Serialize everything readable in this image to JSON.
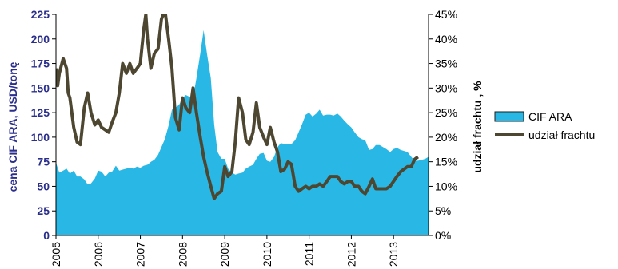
{
  "chart_data": {
    "type": "area",
    "ylabel_left": "cena CIF ARA, USD/tonę",
    "ylabel_right": "udział frachtu , %",
    "y_left_lim": [
      0,
      225
    ],
    "y_left_ticks": [
      0,
      25,
      50,
      75,
      100,
      125,
      150,
      175,
      200,
      225
    ],
    "y_right_lim": [
      0,
      45
    ],
    "y_right_ticks": [
      0,
      5,
      10,
      15,
      20,
      25,
      30,
      35,
      40,
      45
    ],
    "y_right_tick_labels": [
      "0%",
      "5%",
      "10%",
      "15%",
      "20%",
      "25%",
      "30%",
      "35%",
      "40%",
      "45%"
    ],
    "x_ticks": [
      "2005",
      "2006",
      "2007",
      "2008",
      "2009",
      "2010",
      "2011",
      "2012",
      "2013"
    ],
    "x_range": [
      2005.0,
      2013.83
    ],
    "grid": false,
    "legend_position": "right",
    "series": [
      {
        "name": "CIF ARA",
        "type": "area",
        "axis": "left",
        "color": "#29b8e5",
        "points": [
          [
            2005.0,
            74
          ],
          [
            2005.08,
            64
          ],
          [
            2005.17,
            66
          ],
          [
            2005.25,
            68
          ],
          [
            2005.33,
            63
          ],
          [
            2005.42,
            66
          ],
          [
            2005.5,
            60
          ],
          [
            2005.58,
            60
          ],
          [
            2005.67,
            57
          ],
          [
            2005.75,
            52
          ],
          [
            2005.83,
            53
          ],
          [
            2005.92,
            58
          ],
          [
            2006.0,
            66
          ],
          [
            2006.08,
            65
          ],
          [
            2006.17,
            60
          ],
          [
            2006.25,
            64
          ],
          [
            2006.33,
            65
          ],
          [
            2006.42,
            71
          ],
          [
            2006.5,
            66
          ],
          [
            2006.58,
            67
          ],
          [
            2006.67,
            68
          ],
          [
            2006.75,
            69
          ],
          [
            2006.83,
            68
          ],
          [
            2006.92,
            70
          ],
          [
            2007.0,
            69
          ],
          [
            2007.08,
            71
          ],
          [
            2007.17,
            72
          ],
          [
            2007.25,
            75
          ],
          [
            2007.33,
            77
          ],
          [
            2007.42,
            82
          ],
          [
            2007.5,
            90
          ],
          [
            2007.58,
            98
          ],
          [
            2007.67,
            112
          ],
          [
            2007.75,
            128
          ],
          [
            2007.83,
            130
          ],
          [
            2007.92,
            133
          ],
          [
            2008.0,
            140
          ],
          [
            2008.08,
            143
          ],
          [
            2008.17,
            141
          ],
          [
            2008.25,
            140
          ],
          [
            2008.33,
            160
          ],
          [
            2008.42,
            185
          ],
          [
            2008.5,
            209
          ],
          [
            2008.58,
            185
          ],
          [
            2008.67,
            160
          ],
          [
            2008.75,
            113
          ],
          [
            2008.83,
            85
          ],
          [
            2008.92,
            78
          ],
          [
            2009.0,
            78
          ],
          [
            2009.08,
            68
          ],
          [
            2009.17,
            64
          ],
          [
            2009.25,
            62
          ],
          [
            2009.33,
            63
          ],
          [
            2009.42,
            64
          ],
          [
            2009.5,
            68
          ],
          [
            2009.58,
            70
          ],
          [
            2009.67,
            72
          ],
          [
            2009.75,
            78
          ],
          [
            2009.83,
            83
          ],
          [
            2009.92,
            84
          ],
          [
            2010.0,
            76
          ],
          [
            2010.08,
            75
          ],
          [
            2010.17,
            80
          ],
          [
            2010.25,
            90
          ],
          [
            2010.33,
            94
          ],
          [
            2010.42,
            93
          ],
          [
            2010.5,
            93
          ],
          [
            2010.58,
            93
          ],
          [
            2010.67,
            97
          ],
          [
            2010.75,
            105
          ],
          [
            2010.83,
            113
          ],
          [
            2010.92,
            123
          ],
          [
            2011.0,
            125
          ],
          [
            2011.08,
            121
          ],
          [
            2011.17,
            124
          ],
          [
            2011.25,
            128
          ],
          [
            2011.33,
            122
          ],
          [
            2011.42,
            123
          ],
          [
            2011.5,
            123
          ],
          [
            2011.58,
            122
          ],
          [
            2011.67,
            124
          ],
          [
            2011.75,
            121
          ],
          [
            2011.83,
            117
          ],
          [
            2011.92,
            113
          ],
          [
            2012.0,
            110
          ],
          [
            2012.08,
            105
          ],
          [
            2012.17,
            100
          ],
          [
            2012.25,
            98
          ],
          [
            2012.33,
            97
          ],
          [
            2012.42,
            87
          ],
          [
            2012.5,
            88
          ],
          [
            2012.58,
            92
          ],
          [
            2012.67,
            92
          ],
          [
            2012.75,
            90
          ],
          [
            2012.83,
            88
          ],
          [
            2012.92,
            85
          ],
          [
            2013.0,
            88
          ],
          [
            2013.08,
            89
          ],
          [
            2013.17,
            87
          ],
          [
            2013.25,
            86
          ],
          [
            2013.33,
            85
          ],
          [
            2013.42,
            80
          ],
          [
            2013.5,
            76
          ],
          [
            2013.58,
            76
          ],
          [
            2013.67,
            77
          ],
          [
            2013.75,
            78
          ],
          [
            2013.83,
            80
          ]
        ]
      },
      {
        "name": "udział frachtu",
        "type": "line",
        "axis": "right",
        "color": "#4d4732",
        "points": [
          [
            2005.0,
            34
          ],
          [
            2005.04,
            30.5
          ],
          [
            2005.08,
            33
          ],
          [
            2005.17,
            36
          ],
          [
            2005.25,
            34
          ],
          [
            2005.29,
            29
          ],
          [
            2005.33,
            28
          ],
          [
            2005.42,
            22
          ],
          [
            2005.5,
            19
          ],
          [
            2005.58,
            18.5
          ],
          [
            2005.67,
            26
          ],
          [
            2005.75,
            29
          ],
          [
            2005.83,
            25
          ],
          [
            2005.92,
            22.5
          ],
          [
            2006.0,
            23.5
          ],
          [
            2006.08,
            22
          ],
          [
            2006.17,
            21.5
          ],
          [
            2006.25,
            21
          ],
          [
            2006.33,
            23
          ],
          [
            2006.42,
            25
          ],
          [
            2006.5,
            29
          ],
          [
            2006.58,
            35
          ],
          [
            2006.67,
            33
          ],
          [
            2006.75,
            35
          ],
          [
            2006.83,
            33
          ],
          [
            2006.92,
            34
          ],
          [
            2007.0,
            35
          ],
          [
            2007.08,
            42
          ],
          [
            2007.13,
            45
          ],
          [
            2007.17,
            40
          ],
          [
            2007.25,
            34
          ],
          [
            2007.33,
            37
          ],
          [
            2007.42,
            38
          ],
          [
            2007.5,
            44
          ],
          [
            2007.58,
            46
          ],
          [
            2007.67,
            40
          ],
          [
            2007.75,
            34
          ],
          [
            2007.83,
            24
          ],
          [
            2007.92,
            21.5
          ],
          [
            2008.0,
            28
          ],
          [
            2008.08,
            26
          ],
          [
            2008.17,
            25
          ],
          [
            2008.25,
            30
          ],
          [
            2008.33,
            25
          ],
          [
            2008.42,
            20
          ],
          [
            2008.5,
            16
          ],
          [
            2008.58,
            13
          ],
          [
            2008.67,
            10
          ],
          [
            2008.75,
            7.5
          ],
          [
            2008.83,
            8.5
          ],
          [
            2008.92,
            9
          ],
          [
            2009.0,
            14
          ],
          [
            2009.08,
            12
          ],
          [
            2009.17,
            13
          ],
          [
            2009.25,
            19
          ],
          [
            2009.33,
            28
          ],
          [
            2009.42,
            25
          ],
          [
            2009.5,
            19.5
          ],
          [
            2009.58,
            18.5
          ],
          [
            2009.67,
            21
          ],
          [
            2009.75,
            27
          ],
          [
            2009.83,
            22
          ],
          [
            2009.92,
            20
          ],
          [
            2010.0,
            18.5
          ],
          [
            2010.08,
            22
          ],
          [
            2010.17,
            19
          ],
          [
            2010.25,
            17
          ],
          [
            2010.33,
            13
          ],
          [
            2010.42,
            13.5
          ],
          [
            2010.5,
            15
          ],
          [
            2010.58,
            14.5
          ],
          [
            2010.67,
            10
          ],
          [
            2010.75,
            9
          ],
          [
            2010.83,
            9.5
          ],
          [
            2010.92,
            10
          ],
          [
            2011.0,
            9.5
          ],
          [
            2011.08,
            10
          ],
          [
            2011.17,
            10
          ],
          [
            2011.25,
            10.5
          ],
          [
            2011.33,
            10
          ],
          [
            2011.42,
            11
          ],
          [
            2011.5,
            12
          ],
          [
            2011.58,
            12
          ],
          [
            2011.67,
            12
          ],
          [
            2011.75,
            11
          ],
          [
            2011.83,
            10.5
          ],
          [
            2011.92,
            11
          ],
          [
            2012.0,
            11
          ],
          [
            2012.08,
            10
          ],
          [
            2012.17,
            10
          ],
          [
            2012.25,
            9
          ],
          [
            2012.33,
            8.5
          ],
          [
            2012.42,
            10
          ],
          [
            2012.5,
            11.5
          ],
          [
            2012.58,
            9.5
          ],
          [
            2012.67,
            9.5
          ],
          [
            2012.75,
            9.5
          ],
          [
            2012.83,
            9.5
          ],
          [
            2012.92,
            10
          ],
          [
            2013.0,
            11
          ],
          [
            2013.08,
            12
          ],
          [
            2013.17,
            13
          ],
          [
            2013.25,
            13.5
          ],
          [
            2013.33,
            14
          ],
          [
            2013.42,
            14
          ],
          [
            2013.5,
            15.5
          ],
          [
            2013.58,
            16
          ]
        ]
      }
    ]
  }
}
